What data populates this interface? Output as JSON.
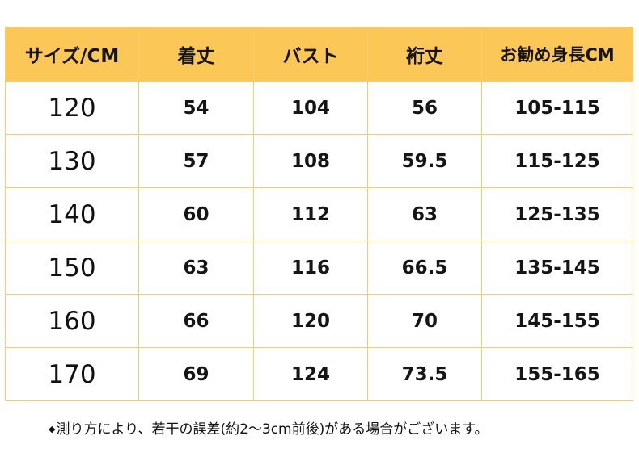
{
  "table": {
    "headers": [
      "サイズ/CM",
      "着丈",
      "バスト",
      "裄丈",
      "お勧め身長CM"
    ],
    "rows": [
      {
        "size": "120",
        "length": "54",
        "bust": "104",
        "sleeve": "56",
        "height": "105-115"
      },
      {
        "size": "130",
        "length": "57",
        "bust": "108",
        "sleeve": "59.5",
        "height": "115-125"
      },
      {
        "size": "140",
        "length": "60",
        "bust": "112",
        "sleeve": "63",
        "height": "125-135"
      },
      {
        "size": "150",
        "length": "63",
        "bust": "116",
        "sleeve": "66.5",
        "height": "135-145"
      },
      {
        "size": "160",
        "length": "66",
        "bust": "120",
        "sleeve": "70",
        "height": "145-155"
      },
      {
        "size": "170",
        "length": "69",
        "bust": "124",
        "sleeve": "73.5",
        "height": "155-165"
      }
    ]
  },
  "note": {
    "bullet": "◆",
    "text": "測り方により、若干の誤差(約2～3cm前後)がある場合がございます。"
  },
  "colors": {
    "header_bg": "#fbc757",
    "border": "#f2cf6c"
  }
}
